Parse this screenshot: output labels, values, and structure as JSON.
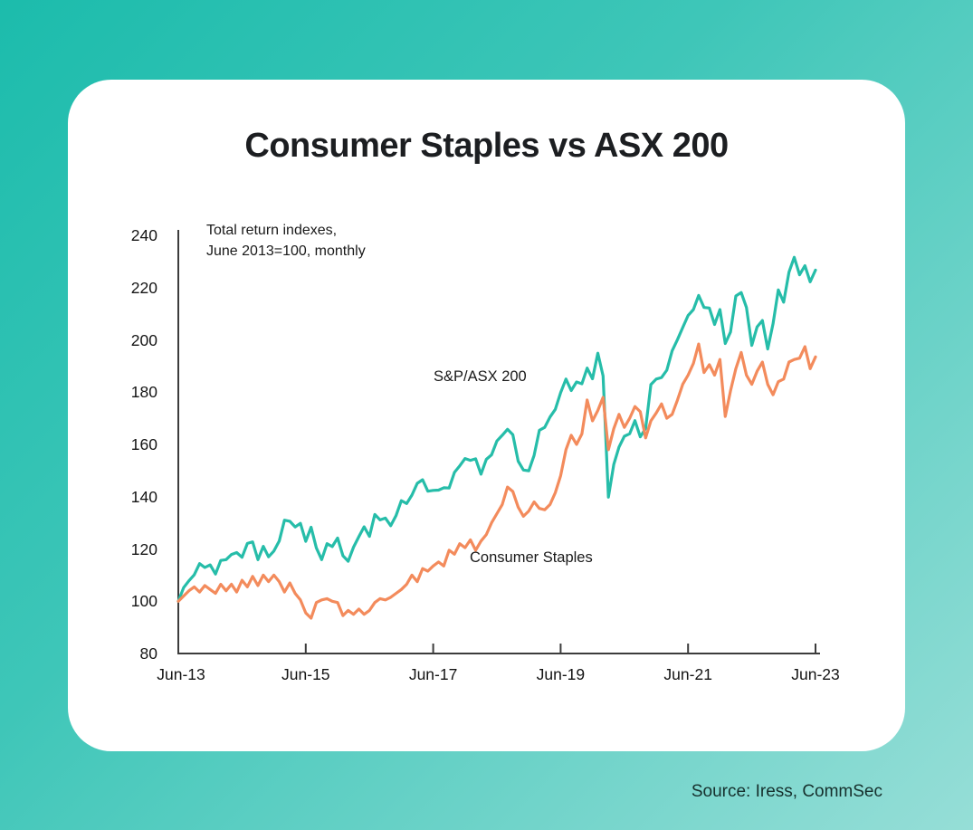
{
  "page": {
    "background_color_top_left": "#1cbcac",
    "background_color_bottom_right": "#96ded7",
    "card_color": "#ffffff"
  },
  "header": {
    "title": "Consumer Staples vs ASX 200"
  },
  "source_note": "Source: Iress, CommSec",
  "chart_data": {
    "type": "line",
    "title": "Consumer Staples vs ASX 200",
    "annotation_lines": [
      "Total return indexes,",
      "June 2013=100, monthly"
    ],
    "x_frequency": "monthly",
    "x_start": "Jun-2013",
    "x_end": "Jun-2023",
    "x_tick_labels": [
      "Jun-13",
      "Jun-15",
      "Jun-17",
      "Jun-19",
      "Jun-21",
      "Jun-23"
    ],
    "y_tick_labels": [
      240,
      220,
      200,
      180,
      160,
      140,
      120,
      100,
      80
    ],
    "ylim": [
      80,
      240
    ],
    "grid": false,
    "legend_position": "inline-text-annotations",
    "axis_color": "#3c3c3c",
    "series": [
      {
        "name": "S&P/ASX 200",
        "color": "#26bda9",
        "values": [
          100,
          105.2,
          107.8,
          110.1,
          114.4,
          112.9,
          113.9,
          110.4,
          115.6,
          115.9,
          117.9,
          118.6,
          116.8,
          122.1,
          122.7,
          115.9,
          121,
          117,
          119.2,
          123,
          131,
          130.6,
          128.4,
          129.8,
          122.9,
          128.3,
          120.4,
          115.9,
          122,
          120.9,
          124.2,
          117.4,
          115.3,
          120.7,
          124.7,
          128.5,
          124.8,
          133.2,
          131.1,
          131.8,
          128.9,
          132.7,
          138.5,
          137.4,
          140.6,
          145.1,
          146.5,
          142.1,
          142.4,
          142.5,
          143.4,
          143.3,
          149.3,
          151.8,
          154.6,
          153.9,
          154.5,
          148.6,
          154.3,
          156,
          161.3,
          163.5,
          165.8,
          163.7,
          153.6,
          150.2,
          149.9,
          155.8,
          165.4,
          166.5,
          170.5,
          173.4,
          179.8,
          185,
          180.6,
          183.9,
          183.2,
          189.2,
          185.1,
          194.9,
          186.2,
          139.8,
          152.3,
          159,
          163.1,
          164.1,
          169.1,
          162.9,
          166.1,
          182.9,
          185,
          185.6,
          188.4,
          195.8,
          200.1,
          204.7,
          209.3,
          211.6,
          217,
          212.4,
          212.2,
          205.9,
          211.6,
          198.6,
          203,
          216.8,
          218.1,
          212.4,
          197.9,
          205,
          207.4,
          196.5,
          206.2,
          219.1,
          214.4,
          225.9,
          231.6,
          224.9,
          228.4,
          222.2,
          226.7
        ]
      },
      {
        "name": "Consumer Staples",
        "color": "#f38b5c",
        "values": [
          100,
          102,
          104,
          105.5,
          103.5,
          106,
          104.5,
          103,
          106.5,
          104,
          106.5,
          103.5,
          108,
          105.5,
          109.5,
          106,
          110,
          107.5,
          110,
          107.5,
          103.5,
          107,
          103,
          100.5,
          95.5,
          93.5,
          99.5,
          100.5,
          101,
          100,
          99.5,
          94.5,
          96.5,
          95,
          97,
          95,
          96.5,
          99.5,
          101,
          100.5,
          101.5,
          103,
          104.5,
          106.5,
          110,
          107.5,
          112.5,
          111.5,
          113.5,
          115,
          113.5,
          119.5,
          118,
          122,
          120.5,
          123.5,
          119.5,
          123,
          125.5,
          130,
          133.5,
          137,
          143.7,
          142,
          136,
          132.5,
          134.5,
          138,
          135.5,
          135,
          137,
          141.5,
          148,
          158,
          163.5,
          160,
          164,
          177,
          169,
          173,
          178,
          158,
          166,
          171.5,
          166.5,
          170,
          174.5,
          172.5,
          162.5,
          169,
          172,
          175.5,
          170,
          171.5,
          177,
          183,
          186.5,
          191,
          198.4,
          187.5,
          190.5,
          186.5,
          192.5,
          170.7,
          180.5,
          189,
          195.2,
          186.5,
          183,
          188,
          191.5,
          183,
          179,
          184,
          185,
          191.5,
          192.5,
          193,
          197.4,
          189,
          193.5
        ]
      }
    ]
  }
}
